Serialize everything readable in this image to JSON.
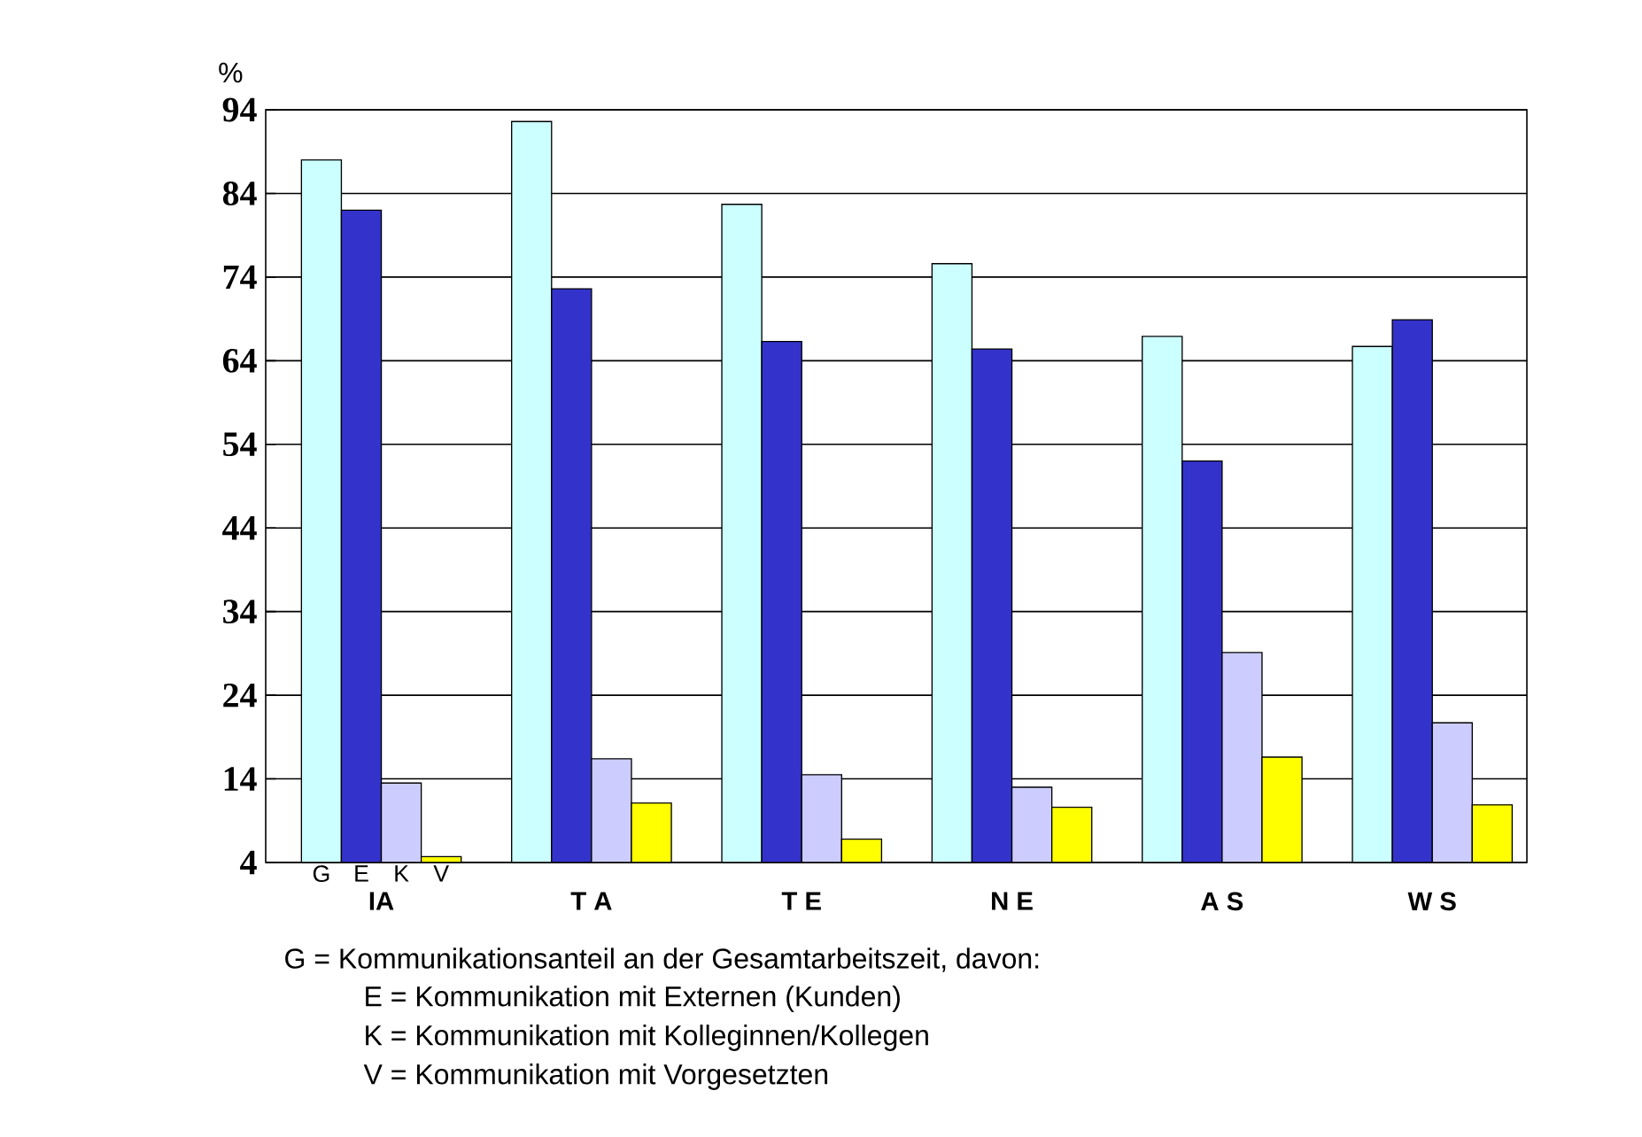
{
  "chart_data": {
    "type": "bar",
    "ylabel": "%",
    "categories": [
      "IA",
      "T A",
      "T E",
      "N E",
      "A S",
      "W S"
    ],
    "series": [
      {
        "name": "G",
        "color": "#ccffff",
        "values": [
          88.0,
          92.6,
          82.7,
          75.6,
          66.9,
          65.7
        ]
      },
      {
        "name": "E",
        "color": "#3333cc",
        "values": [
          82.0,
          72.6,
          66.3,
          65.4,
          52.0,
          68.9
        ]
      },
      {
        "name": "K",
        "color": "#ccccff",
        "values": [
          13.5,
          16.4,
          14.5,
          13.0,
          29.1,
          20.7
        ]
      },
      {
        "name": "V",
        "color": "#ffff00",
        "values": [
          4.7,
          11.1,
          6.8,
          10.6,
          16.6,
          10.9
        ]
      }
    ],
    "ylim": [
      4,
      94
    ],
    "yticks": [
      4,
      14,
      24,
      34,
      44,
      54,
      64,
      74,
      84,
      94
    ],
    "grid": "y",
    "annotations": [
      "G = Kommunikationsanteil an der Gesamtarbeitszeit, davon:",
      "E = Kommunikation mit Externen (Kunden)",
      "K = Kommunikation mit Kolleginnen/Kollegen",
      "V = Kommunikation mit Vorgesetzten"
    ]
  }
}
